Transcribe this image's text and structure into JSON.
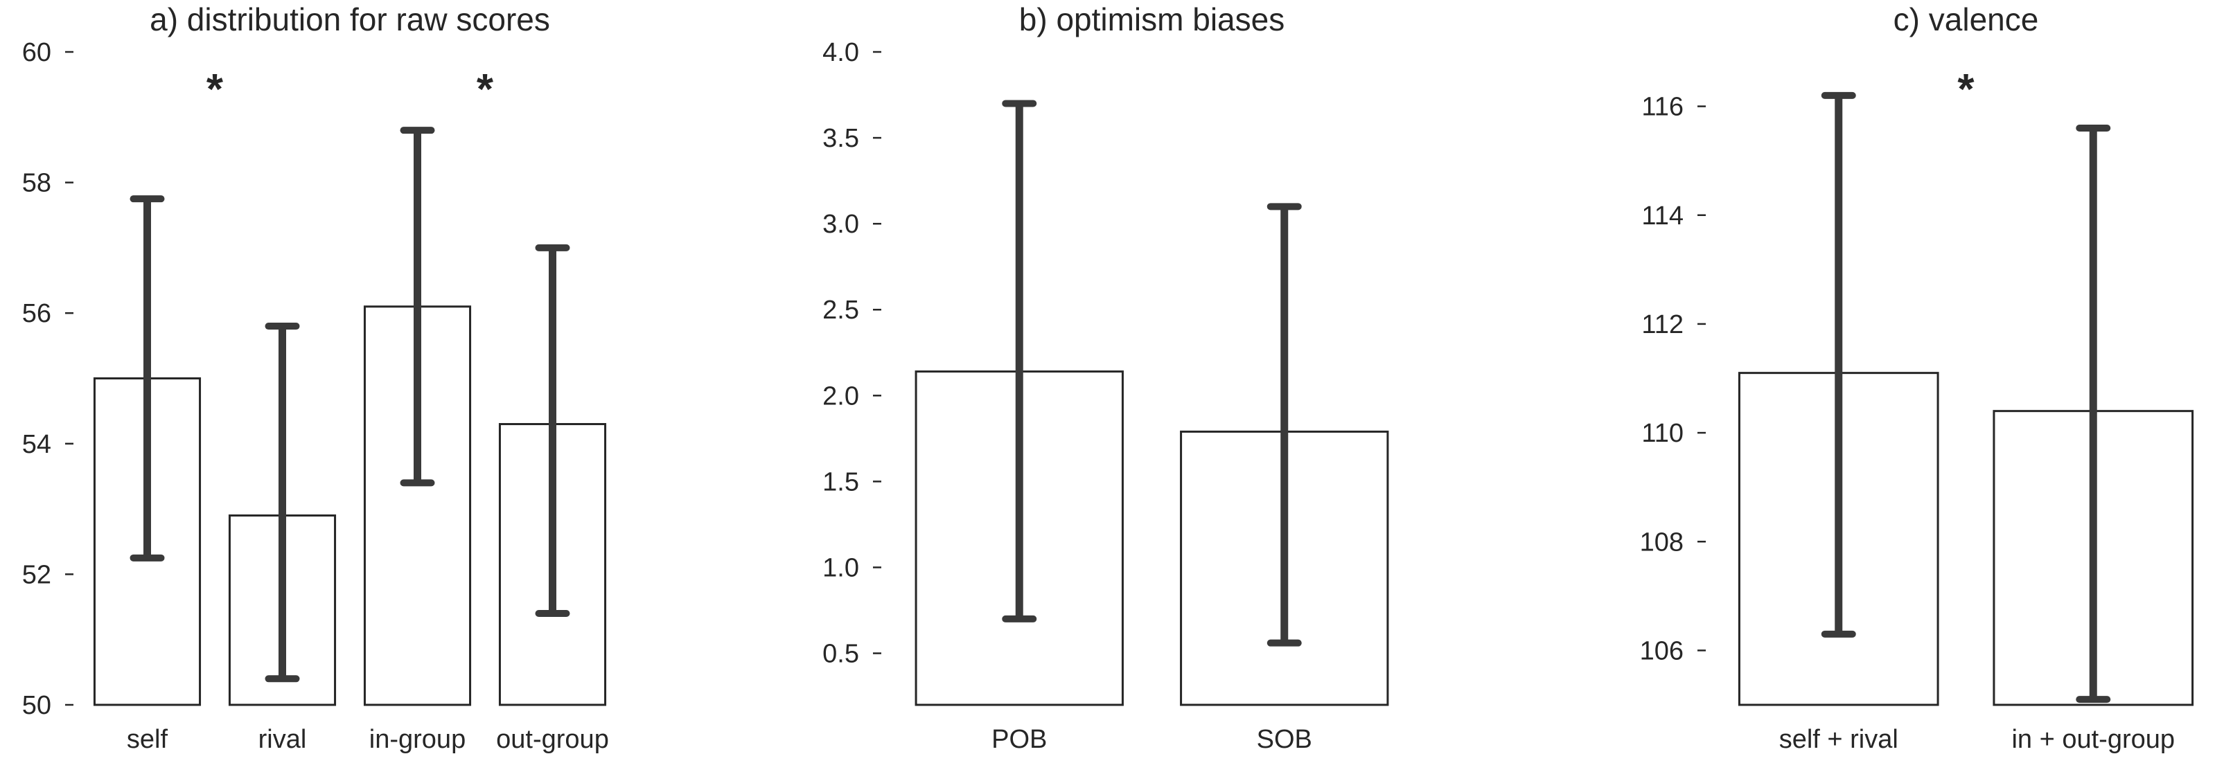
{
  "chart_data": [
    {
      "type": "bar",
      "title": "a) distribution for raw scores",
      "categories": [
        "self",
        "rival",
        "in-group",
        "out-group"
      ],
      "values": [
        55.0,
        52.9,
        56.1,
        54.3
      ],
      "error_bars": [
        [
          52.25,
          57.75
        ],
        [
          50.4,
          55.8
        ],
        [
          53.4,
          58.8
        ],
        [
          51.4,
          57.0
        ]
      ],
      "ylim": [
        50,
        60
      ],
      "yticks": [
        50,
        52,
        54,
        56,
        58,
        60
      ],
      "ytick_labels": [
        "50",
        "52",
        "54",
        "56",
        "58",
        "60"
      ],
      "annotations": [
        {
          "text": "*",
          "between": [
            0,
            1
          ]
        },
        {
          "text": "*",
          "between": [
            2,
            3
          ]
        }
      ],
      "xlabel": "",
      "ylabel": "",
      "grid": false
    },
    {
      "type": "bar",
      "title": "b) optimism biases",
      "categories": [
        "POB",
        "SOB"
      ],
      "values": [
        2.14,
        1.79
      ],
      "error_bars": [
        [
          0.7,
          3.7
        ],
        [
          0.56,
          3.1
        ]
      ],
      "ylim": [
        0.2,
        4.0
      ],
      "yticks": [
        0.5,
        1.0,
        1.5,
        2.0,
        2.5,
        3.0,
        3.5,
        4.0
      ],
      "ytick_labels": [
        "0.5",
        "1.0",
        "1.5",
        "2.0",
        "2.5",
        "3.0",
        "3.5",
        "4.0"
      ],
      "annotations": [],
      "xlabel": "",
      "ylabel": "",
      "grid": false
    },
    {
      "type": "bar",
      "title": "c) valence",
      "categories": [
        "self + rival",
        "in + out-group"
      ],
      "values": [
        111.1,
        110.4
      ],
      "error_bars": [
        [
          106.3,
          116.2
        ],
        [
          105.1,
          115.6
        ]
      ],
      "ylim": [
        105,
        117
      ],
      "yticks": [
        106,
        108,
        110,
        112,
        114,
        116
      ],
      "ytick_labels": [
        "106",
        "108",
        "110",
        "112",
        "114",
        "116"
      ],
      "annotations": [
        {
          "text": "*",
          "between": [
            0,
            1
          ]
        }
      ],
      "xlabel": "",
      "ylabel": "",
      "grid": false
    }
  ],
  "style": {
    "bar_fill": "#ffffff",
    "bar_edge": "#262626",
    "error_bar_color": "#3a3a3a",
    "text_color": "#262626"
  }
}
